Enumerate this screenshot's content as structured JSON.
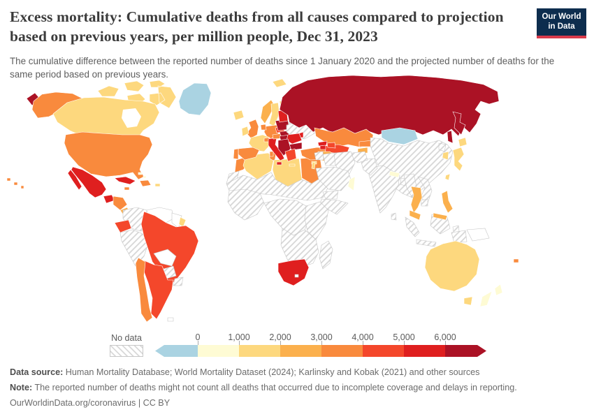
{
  "header": {
    "title": "Excess mortality: Cumulative deaths from all causes compared to projection based on previous years, per million people, Dec 31, 2023",
    "logo": {
      "line1": "Our World",
      "line2": "in Data"
    }
  },
  "subtitle": "The cumulative difference between the reported number of deaths since 1 January 2020 and the projected number of deaths for the same period based on previous years.",
  "legend": {
    "no_data_label": "No data",
    "ticks": [
      "0",
      "1,000",
      "2,000",
      "3,000",
      "4,000",
      "5,000",
      "6,000"
    ],
    "colors": [
      "#aad3e2",
      "#fefbd4",
      "#fdd87e",
      "#fbb04d",
      "#f98a3d",
      "#f4472b",
      "#df1f1f",
      "#ab1225"
    ]
  },
  "footer": {
    "data_source_label": "Data source:",
    "data_source": " Human Mortality Database; World Mortality Dataset (2024); Karlinsky and Kobak (2021) and other sources",
    "note_label": "Note:",
    "note": " The reported number of deaths might not count all deaths that occurred due to incomplete coverage and delays in reporting.",
    "attribution": "OurWorldinData.org/coronavirus | CC BY"
  },
  "map": {
    "palette": {
      "negative": "#aad3e2",
      "b0": "#fefbd4",
      "b1": "#fdd87e",
      "b2": "#fbb04d",
      "b3": "#f98a3d",
      "b4": "#f4472b",
      "b5": "#df1f1f",
      "b6": "#ab1225"
    },
    "regions": {
      "greenland": "negative",
      "svalbard": "b1",
      "canada-arctic": "b1",
      "canada": "b1",
      "alaska": "b3",
      "chukotka": "b6",
      "usa": "b3",
      "hawaii": "b3",
      "mexico": "b5",
      "baja": "b5",
      "guatemala": "b5",
      "honduras-nicaragua": "b3",
      "costa-rica": "b2",
      "panama": "no_data",
      "cuba": "b5",
      "hispaniola": "b3",
      "jamaica": "b3",
      "puerto-rico": "b1",
      "bahamas": "b0",
      "colombia": "no_data",
      "venezuela": "plain",
      "guyanas": "plain",
      "french-guiana": "b1",
      "ecuador": "b4",
      "peru": "no_data",
      "brazil": "b4",
      "bolivia": "plain",
      "paraguay": "no_data",
      "uruguay": "no_data",
      "argentina": "b4",
      "chile": "b3",
      "falklands": "plain",
      "morocco": "b3",
      "western-sahara": "no_data",
      "algeria": "b1",
      "tunisia": "b3",
      "libya": "b1",
      "egypt": "b3",
      "sahel": "no_data",
      "west-africa": "no_data",
      "central-africa": "no_data",
      "horn-of-africa": "no_data",
      "east-africa": "no_data",
      "southern-africa": "no_data",
      "south-africa": "b5",
      "lesotho": "plain",
      "madagascar": "no_data",
      "iceland": "b1",
      "norway": "b2",
      "sweden": "b1",
      "finland": "b1",
      "denmark": "b3",
      "uk": "b3",
      "ireland": "b1",
      "germany": "b3",
      "benelux": "b3",
      "france": "b1",
      "spain": "b3",
      "portugal": "b3",
      "italy": "b5",
      "sicily": "b5",
      "sardinia": "b3",
      "switzerland": "b3",
      "czechia": "b4",
      "austria": "b3",
      "poland": "b6",
      "slovakia": "b6",
      "hungary": "b6",
      "baltics": "b5",
      "belarus": "no_data",
      "ukraine": "no_data",
      "moldova": "b5",
      "romania": "b5",
      "bulgaria": "b6",
      "balkans": "b6",
      "greece": "b4",
      "crete": "b1",
      "turkey": "b3",
      "cyprus": "b1",
      "russia": "b6",
      "kamchatka": "b6",
      "sakhalin": "b6",
      "kazakhstan": "b3",
      "uzbekistan": "b4",
      "turkmenistan": "b2",
      "kyrgyzstan": "b3",
      "tajikistan": "b2",
      "georgia": "b5",
      "azerbaijan": "b4",
      "armenia": "b5",
      "mongolia": "negative",
      "china": "no_data",
      "north-korea": "no_data",
      "south-korea": "b1",
      "japan-hokkaido": "b1",
      "japan": "b1",
      "taiwan": "b1",
      "india": "no_data",
      "nepal": "b0",
      "bangladesh": "no_data",
      "sri-lanka": "no_data",
      "pakistan": "no_data",
      "afghanistan": "no_data",
      "iran": "no_data",
      "iraq": "no_data",
      "syria": "no_data",
      "israel": "b1",
      "saudi-arabia": "no_data",
      "oman": "b0",
      "yemen": "no_data",
      "myanmar": "no_data",
      "thailand": "b2",
      "laos-vietnam": "no_data",
      "cambodia": "no_data",
      "malaysia": "b2",
      "borneo": "no_data",
      "borneo-malaysia": "b2",
      "sumatra": "no_data",
      "java": "no_data",
      "sulawesi": "no_data",
      "west-papua": "no_data",
      "papua-new-guinea": "plain",
      "philippines": "b2",
      "australia": "b1",
      "tasmania": "b1",
      "new-zealand-north": "b0",
      "new-zealand-south": "b0",
      "fiji": "b3"
    }
  },
  "chart_data": {
    "type": "choropleth",
    "title": "Excess mortality: Cumulative deaths from all causes compared to projection based on previous years, per million people",
    "date": "Dec 31, 2023",
    "unit": "cumulative excess deaths per million people",
    "legend_position": "bottom",
    "bins": [
      {
        "label": "below 0",
        "color": "#aad3e2"
      },
      {
        "label": "0–1,000",
        "color": "#fefbd4"
      },
      {
        "label": "1,000–2,000",
        "color": "#fdd87e"
      },
      {
        "label": "2,000–3,000",
        "color": "#fbb04d"
      },
      {
        "label": "3,000–4,000",
        "color": "#f98a3d"
      },
      {
        "label": "4,000–5,000",
        "color": "#f4472b"
      },
      {
        "label": "5,000–6,000",
        "color": "#df1f1f"
      },
      {
        "label": "above 6,000",
        "color": "#ab1225"
      },
      {
        "label": "No data",
        "color": "hatched-pattern"
      }
    ],
    "regions_by_bin": {
      "below 0": [
        "Greenland",
        "Mongolia"
      ],
      "0-1000": [
        "Sweden (pale band)",
        "New Zealand",
        "Nepal",
        "Oman/UAE",
        "Bahamas"
      ],
      "1000-2000": [
        "Canada",
        "Australia",
        "Japan",
        "South Korea",
        "France",
        "Sweden",
        "Finland",
        "Iceland",
        "Ireland",
        "Algeria",
        "Libya",
        "Taiwan",
        "Israel",
        "French Guiana",
        "Puerto Rico",
        "Cyprus",
        "Tasmania"
      ],
      "2000-3000": [
        "Norway",
        "Thailand",
        "Malaysia",
        "Philippines",
        "Turkmenistan",
        "Tajikistan",
        "Costa Rica"
      ],
      "3000-4000": [
        "United States",
        "Chile",
        "United Kingdom",
        "Germany",
        "Spain",
        "Portugal",
        "Turkey",
        "Kazakhstan",
        "Kyrgyzstan",
        "Egypt",
        "Morocco",
        "Tunisia",
        "Austria",
        "Switzerland",
        "Denmark",
        "Benelux",
        "Honduras",
        "Nicaragua",
        "Dominican Republic",
        "Jamaica",
        "Fiji"
      ],
      "4000-5000": [
        "Brazil",
        "Argentina",
        "Ecuador",
        "Greece",
        "Czechia",
        "Uzbekistan",
        "Azerbaijan"
      ],
      "5000-6000": [
        "Mexico",
        "Cuba",
        "Guatemala",
        "Italy",
        "South Africa",
        "Romania",
        "Moldova",
        "Georgia",
        "Armenia",
        "Baltic states"
      ],
      "above 6000": [
        "Russia",
        "Poland",
        "Slovakia",
        "Hungary",
        "Bulgaria",
        "Serbia and Western Balkans"
      ],
      "no data": [
        "China",
        "India",
        "Most of Africa",
        "Iran",
        "Iraq",
        "Saudi Arabia",
        "Yemen",
        "Ukraine",
        "Belarus",
        "Peru",
        "Colombia",
        "Venezuela",
        "Bolivia",
        "Paraguay",
        "Uruguay",
        "Indonesia",
        "Vietnam",
        "Myanmar",
        "Pakistan",
        "Afghanistan",
        "Madagascar",
        "Papua New Guinea"
      ]
    }
  }
}
